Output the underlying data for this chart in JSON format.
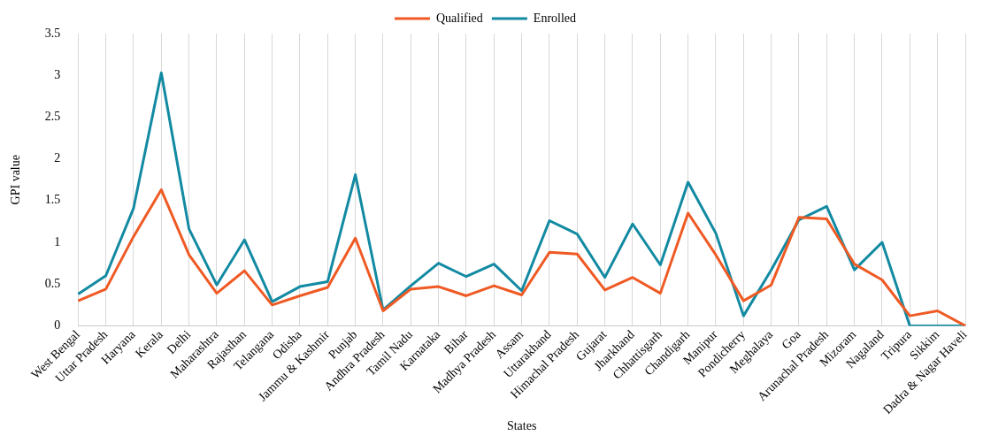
{
  "chart_data": {
    "type": "line",
    "xlabel": "States",
    "ylabel": "GPI value",
    "categories": [
      "West Bengal",
      "Uttar Pradesh",
      "Haryana",
      "Kerala",
      "Delhi",
      "Maharashtra",
      "Rajasthan",
      "Telangana",
      "Odisha",
      "Jammu & Kashmir",
      "Punjab",
      "Andhra Pradesh",
      "Tamil Nadu",
      "Karnataka",
      "Bihar",
      "Madhya Pradesh",
      "Assam",
      "Uttarakhand",
      "Himachal Pradesh",
      "Gujarat",
      "Jharkhand",
      "Chhattisgarh",
      "Chandigarh",
      "Manipur",
      "Pondicherry",
      "Meghalaya",
      "Goa",
      "Arunachal Pradesh",
      "Mizoram",
      "Nagaland",
      "Tripura",
      "Sikkim",
      "Dadra & Nagar Haveli"
    ],
    "series": [
      {
        "name": "Qualified",
        "color": "#ef5a24",
        "values": [
          0.3,
          0.44,
          1.07,
          1.63,
          0.85,
          0.39,
          0.66,
          0.25,
          0.36,
          0.46,
          1.05,
          0.18,
          0.44,
          0.47,
          0.36,
          0.48,
          0.37,
          0.88,
          0.86,
          0.43,
          0.58,
          0.39,
          1.35,
          0.85,
          0.3,
          0.49,
          1.3,
          1.28,
          0.74,
          0.55,
          0.12,
          0.18,
          0
        ]
      },
      {
        "name": "Enrolled",
        "color": "#128aa2",
        "values": [
          0.38,
          0.6,
          1.41,
          3.03,
          1.16,
          0.49,
          1.03,
          0.29,
          0.47,
          0.53,
          1.81,
          0.19,
          0.48,
          0.75,
          0.59,
          0.74,
          0.42,
          1.26,
          1.1,
          0.58,
          1.22,
          0.73,
          1.72,
          1.11,
          0.12,
          0.67,
          1.27,
          1.43,
          0.67,
          1.0,
          0,
          0,
          0
        ]
      }
    ],
    "ylim": [
      0,
      3.5
    ],
    "yticks": [
      0,
      0.5,
      1,
      1.5,
      2,
      2.5,
      3,
      3.5
    ],
    "grid": "x",
    "legend": "top",
    "marker": "none"
  }
}
